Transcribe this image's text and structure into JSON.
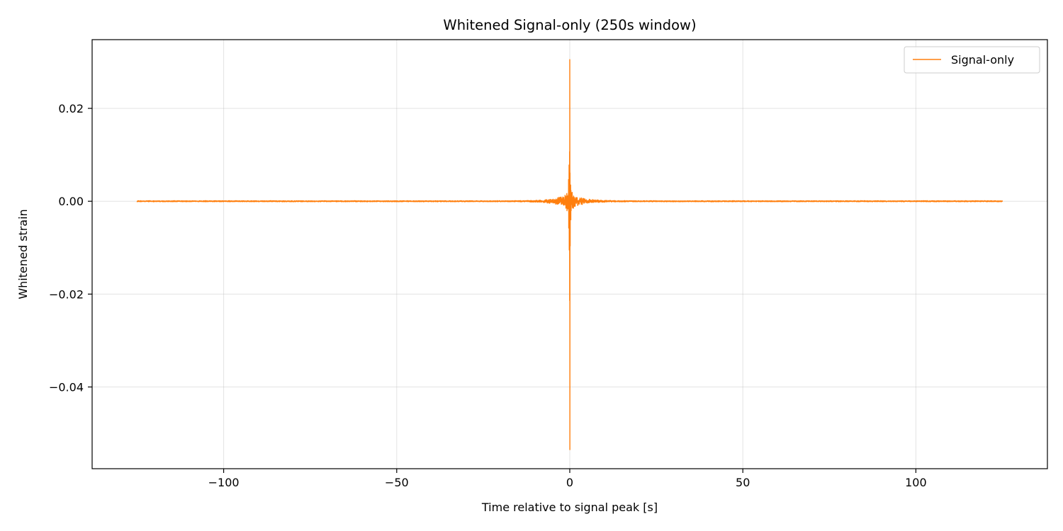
{
  "chart_data": {
    "type": "line",
    "title": "Whitened Signal-only (250s window)",
    "xlabel": "Time relative to signal peak [s]",
    "ylabel": "Whitened strain",
    "xlim": [
      -138,
      138
    ],
    "ylim": [
      -0.0576,
      0.0348
    ],
    "xticks": [
      -100,
      -50,
      0,
      50,
      100
    ],
    "xtick_labels": [
      "−100",
      "−50",
      "0",
      "50",
      "100"
    ],
    "yticks": [
      -0.04,
      -0.02,
      0.0,
      0.02
    ],
    "ytick_labels": [
      "−0.04",
      "−0.02",
      "0.00",
      "0.02"
    ],
    "grid": true,
    "legend_position": "top-right",
    "series": [
      {
        "name": "Signal-only",
        "color": "#ff7f0e",
        "x_range": [
          -125,
          125
        ],
        "peak_time": 0.0,
        "max_value": 0.0305,
        "min_value": -0.0535,
        "secondary_max": 0.0078,
        "secondary_min": -0.0105,
        "baseline": 0.0
      }
    ]
  }
}
